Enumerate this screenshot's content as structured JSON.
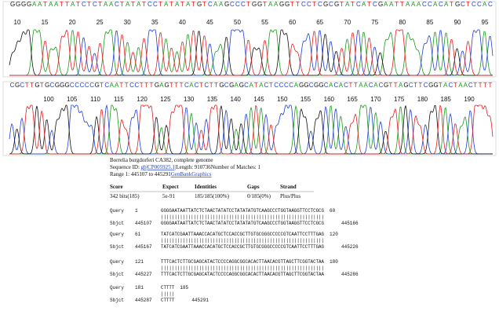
{
  "tracks": [
    {
      "bases": "GGGGAATAATTATCTCTAACTATATCCTATATATGTCAAGCCCTGGTAAGGTTCCTCGCGTATCATCGAATTAAACCACATGCTCCAC",
      "ticks": [
        10,
        15,
        20,
        25,
        30,
        35,
        40,
        45,
        50,
        55,
        60,
        65,
        70,
        75,
        80,
        85,
        90,
        95
      ]
    },
    {
      "bases": "CGCTTGTGCGGGCCCCCGTCAATTCCTTTGAGTTTCACTCTTGCGAGCATACTCCCCAGGCGGCACACTTAACACGTTAGCTTCGGTACTAACTTTT",
      "ticks": [
        100,
        105,
        110,
        115,
        120,
        125,
        130,
        135,
        140,
        145,
        150,
        155,
        160,
        165,
        170,
        175,
        180,
        185,
        190
      ]
    }
  ],
  "hit": {
    "title": "Borrelia burgdorferi CA382, complete genome",
    "sequence_id": {
      "label": "Sequence ID: ",
      "link": "gb|CP005925.1|",
      "length": "Length: 910736",
      "matches": "Number of Matches: 1"
    },
    "range": {
      "label": "Range 1: 445107 to 445291",
      "genbank": "GenBank",
      "graphics": "Graphics"
    },
    "table": {
      "headers": [
        "Score",
        "Expect",
        "Identities",
        "Gaps",
        "Strand"
      ],
      "values": [
        "342 bits(185)",
        "5e-91",
        "185/185(100%)",
        "0/185(0%)",
        "Plus/Plus"
      ]
    },
    "alignment": [
      {
        "query": [
          "Query",
          "1",
          "GGGGAATAATTATCTCTAACTATATCCTATATATGTCAAGCCCTGGTAAGGTTCCTCGCG",
          "60"
        ],
        "match": "||||||||||||||||||||||||||||||||||||||||||||||||||||||||||||",
        "sbjct": [
          "Sbjct",
          "445107",
          "GGGGAATAATTATCTCTAACTATATCCTATATATGTCAAGCCCTGGTAAGGTTCCTCGCG",
          "445166"
        ]
      },
      {
        "query": [
          "Query",
          "61",
          "TATCATCGAATTAAACCACATGCTCCACCGCTTGTGCGGGCCCCCGTCAATTCCTTTGAG",
          "120"
        ],
        "match": "||||||||||||||||||||||||||||||||||||||||||||||||||||||||||||",
        "sbjct": [
          "Sbjct",
          "445167",
          "TATCATCGAATTAAACCACATGCTCCACCGCTTGTGCGGGCCCCCGTCAATTCCTTTGAG",
          "445226"
        ]
      },
      {
        "query": [
          "Query",
          "121",
          "TTTCACTCTTGCGAGCATACTCCCCAGGCGGCACACTTAACACGTTAGCTTCGGTACTAA",
          "180"
        ],
        "match": "||||||||||||||||||||||||||||||||||||||||||||||||||||||||||||",
        "sbjct": [
          "Sbjct",
          "445227",
          "TTTCACTCTTGCGAGCATACTCCCCAGGCGGCACACTTAACACGTTAGCTTCGGTACTAA",
          "445286"
        ]
      },
      {
        "query": [
          "Query",
          "181",
          "CTTTT",
          "185"
        ],
        "match": "|||||",
        "sbjct": [
          "Sbjct",
          "445287",
          "CTTTT",
          "445291"
        ]
      }
    ]
  }
}
